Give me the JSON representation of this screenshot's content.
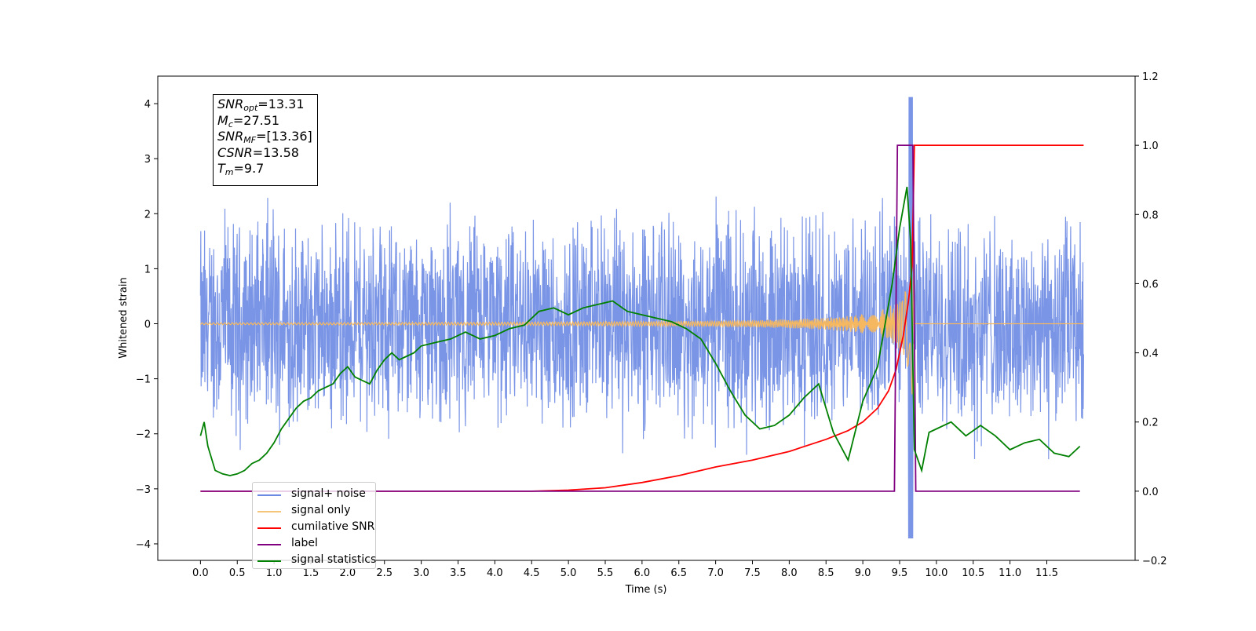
{
  "chart_data": {
    "type": "line",
    "xlabel": "Time (s)",
    "ylabel": "Whitened strain",
    "xlim": [
      -0.58,
      12.7
    ],
    "ylim": [
      -4.3,
      4.5
    ],
    "y2lim": [
      -0.2,
      1.2
    ],
    "x_ticks": [
      "0.0",
      "0.5",
      "1.0",
      "1.5",
      "2.0",
      "2.5",
      "3.0",
      "3.5",
      "4.0",
      "4.5",
      "5.0",
      "5.5",
      "6.0",
      "6.5",
      "7.0",
      "7.5",
      "8.0",
      "8.5",
      "9.0",
      "9.5",
      "10.0",
      "10.5",
      "11.0",
      "11.5"
    ],
    "y_ticks": [
      "4",
      "3",
      "2",
      "1",
      "0",
      "−1",
      "−2",
      "−3",
      "−4"
    ],
    "y2_ticks": [
      "1.2",
      "1.0",
      "0.8",
      "0.6",
      "0.4",
      "0.2",
      "0.0",
      "−0.2"
    ],
    "annotation": [
      {
        "label": "SNR",
        "sub": "opt",
        "value": "=13.31"
      },
      {
        "label": "M",
        "sub": "c",
        "value": "=27.51"
      },
      {
        "label": "SNR",
        "sub": "MF",
        "value": "=[13.36]"
      },
      {
        "label": "CSNR",
        "sub": "",
        "value": "=13.58"
      },
      {
        "label": "T",
        "sub": "m",
        "value": "=9.7"
      }
    ],
    "series": [
      {
        "name": "signal+ noise",
        "color": "#6b89e3",
        "axis": "left",
        "t_range": [
          0.0,
          12.0
        ],
        "noise_envelope": [
          -2.6,
          2.6
        ],
        "extreme_max": 4.12,
        "extreme_min": -3.9,
        "extreme_at": 9.65
      },
      {
        "name": "signal only",
        "color": "#f5b860",
        "axis": "left",
        "note_chirp_peak_time": 9.7,
        "peak_amplitude": 2.0
      },
      {
        "name": "cumilative SNR",
        "color": "#ff0000",
        "axis": "right",
        "x": [
          0.0,
          4.5,
          5.0,
          5.5,
          6.0,
          6.5,
          7.0,
          7.5,
          8.0,
          8.5,
          8.8,
          9.0,
          9.2,
          9.35,
          9.45,
          9.55,
          9.62,
          9.67,
          9.7,
          10.0,
          11.0,
          12.0
        ],
        "values": [
          0.0,
          0.0,
          0.003,
          0.01,
          0.025,
          0.045,
          0.07,
          0.09,
          0.115,
          0.15,
          0.175,
          0.2,
          0.24,
          0.29,
          0.35,
          0.45,
          0.55,
          0.65,
          1.0,
          1.0,
          1.0,
          1.0
        ]
      },
      {
        "name": "label",
        "color": "#800080",
        "axis": "right",
        "x": [
          0.0,
          9.43,
          9.47,
          9.68,
          9.72,
          11.95
        ],
        "values": [
          0.0,
          0.0,
          1.0,
          1.0,
          0.0,
          0.0
        ]
      },
      {
        "name": "signal statistics",
        "color": "#008000",
        "axis": "right",
        "x": [
          0.0,
          0.05,
          0.1,
          0.2,
          0.3,
          0.4,
          0.5,
          0.6,
          0.7,
          0.8,
          0.9,
          1.0,
          1.1,
          1.2,
          1.3,
          1.4,
          1.5,
          1.6,
          1.7,
          1.8,
          1.9,
          2.0,
          2.1,
          2.2,
          2.3,
          2.4,
          2.5,
          2.6,
          2.7,
          2.8,
          2.9,
          3.0,
          3.2,
          3.4,
          3.6,
          3.8,
          4.0,
          4.2,
          4.4,
          4.6,
          4.8,
          5.0,
          5.2,
          5.4,
          5.6,
          5.8,
          6.0,
          6.2,
          6.4,
          6.6,
          6.8,
          7.0,
          7.2,
          7.4,
          7.6,
          7.8,
          8.0,
          8.2,
          8.4,
          8.6,
          8.8,
          9.0,
          9.2,
          9.4,
          9.5,
          9.6,
          9.65,
          9.7,
          9.8,
          9.9,
          10.0,
          10.2,
          10.4,
          10.6,
          10.8,
          11.0,
          11.2,
          11.4,
          11.6,
          11.8,
          11.95
        ],
        "values": [
          0.16,
          0.2,
          0.13,
          0.06,
          0.05,
          0.045,
          0.05,
          0.06,
          0.08,
          0.09,
          0.11,
          0.14,
          0.18,
          0.21,
          0.24,
          0.26,
          0.27,
          0.29,
          0.3,
          0.31,
          0.34,
          0.36,
          0.33,
          0.32,
          0.31,
          0.35,
          0.38,
          0.4,
          0.38,
          0.39,
          0.4,
          0.42,
          0.43,
          0.44,
          0.46,
          0.44,
          0.45,
          0.47,
          0.48,
          0.52,
          0.53,
          0.51,
          0.53,
          0.54,
          0.55,
          0.52,
          0.51,
          0.5,
          0.49,
          0.47,
          0.44,
          0.37,
          0.29,
          0.22,
          0.18,
          0.19,
          0.22,
          0.27,
          0.31,
          0.17,
          0.09,
          0.26,
          0.36,
          0.6,
          0.76,
          0.88,
          0.72,
          0.12,
          0.06,
          0.17,
          0.18,
          0.2,
          0.16,
          0.19,
          0.16,
          0.12,
          0.14,
          0.15,
          0.11,
          0.1,
          0.13
        ]
      }
    ],
    "legend_location": "lower-left",
    "grid": false
  }
}
